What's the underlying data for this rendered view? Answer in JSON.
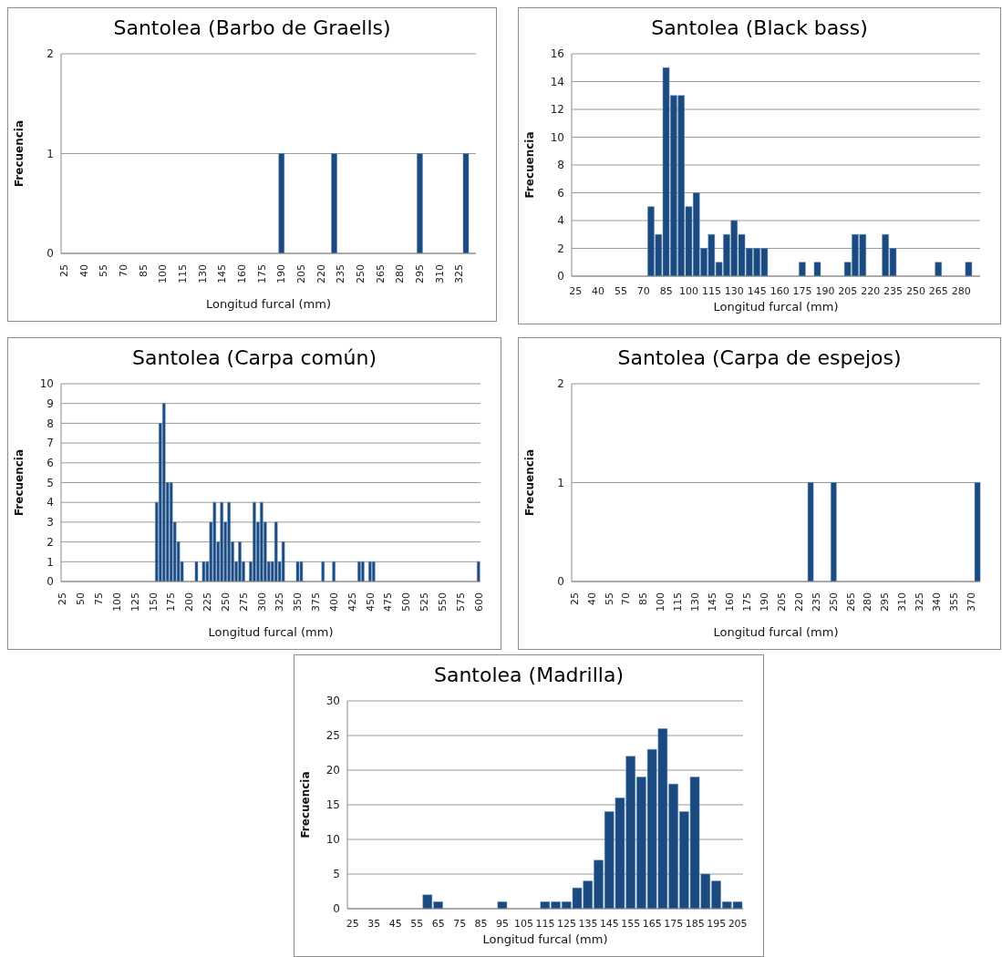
{
  "chart_data": [
    {
      "type": "bar",
      "title": "Santolea (Barbo de Graells)",
      "xlabel": "Longitud furcal (mm)",
      "ylabel": "Frecuencia",
      "color": "#1b4a80",
      "ylim": [
        0,
        2
      ],
      "yticks": [
        0,
        1,
        2
      ],
      "grid": "y",
      "categories": [
        "25",
        null,
        null,
        "40",
        null,
        null,
        "55",
        null,
        null,
        "70",
        null,
        null,
        "85",
        null,
        null,
        "100",
        null,
        null,
        "115",
        null,
        null,
        "130",
        null,
        null,
        "145",
        null,
        null,
        "160",
        null,
        null,
        "175",
        null,
        null,
        "190",
        null,
        null,
        "205",
        null,
        null,
        "220",
        null,
        null,
        "235",
        null,
        null,
        "250",
        null,
        null,
        "265",
        null,
        null,
        "280",
        null,
        null,
        "295",
        null,
        null,
        "310",
        null,
        null,
        "325",
        null,
        null
      ],
      "values": [
        0,
        0,
        0,
        0,
        0,
        0,
        0,
        0,
        0,
        0,
        0,
        0,
        0,
        0,
        0,
        0,
        0,
        0,
        0,
        0,
        0,
        0,
        0,
        0,
        0,
        0,
        0,
        0,
        0,
        0,
        0,
        0,
        0,
        1,
        0,
        0,
        0,
        0,
        0,
        0,
        0,
        1,
        0,
        0,
        0,
        0,
        0,
        0,
        0,
        0,
        0,
        0,
        0,
        0,
        1,
        0,
        0,
        0,
        0,
        0,
        0,
        1,
        0
      ]
    },
    {
      "type": "bar",
      "title": "Santolea (Black bass)",
      "xlabel": "Longitud furcal (mm)",
      "ylabel": "Frecuencia",
      "color": "#1b4a80",
      "ylim": [
        0,
        16
      ],
      "yticks": [
        0,
        2,
        4,
        6,
        8,
        10,
        12,
        14,
        16
      ],
      "grid": "y",
      "categories": [
        "25",
        null,
        null,
        "40",
        null,
        null,
        "55",
        null,
        null,
        "70",
        null,
        null,
        "85",
        null,
        null,
        "100",
        null,
        null,
        "115",
        null,
        null,
        "130",
        null,
        null,
        "145",
        null,
        null,
        "160",
        null,
        null,
        "175",
        null,
        null,
        "190",
        null,
        null,
        "205",
        null,
        null,
        "220",
        null,
        null,
        "235",
        null,
        null,
        "250",
        null,
        null,
        "265",
        null,
        null,
        "280",
        null,
        null
      ],
      "values": [
        0,
        0,
        0,
        0,
        0,
        0,
        0,
        0,
        0,
        0,
        5,
        3,
        15,
        13,
        13,
        5,
        6,
        2,
        3,
        1,
        3,
        4,
        3,
        2,
        2,
        2,
        0,
        0,
        0,
        0,
        1,
        0,
        1,
        0,
        0,
        0,
        1,
        3,
        3,
        0,
        0,
        3,
        2,
        0,
        0,
        0,
        0,
        0,
        1,
        0,
        0,
        0,
        1,
        0
      ]
    },
    {
      "type": "bar",
      "title": "Santolea (Carpa común)",
      "xlabel": "Longitud furcal (mm)",
      "ylabel": "Frecuencia",
      "color": "#1b4a80",
      "ylim": [
        0,
        10
      ],
      "yticks": [
        0,
        1,
        2,
        3,
        4,
        5,
        6,
        7,
        8,
        9,
        10
      ],
      "grid": "y",
      "categories": [
        "25",
        null,
        null,
        null,
        null,
        "50",
        null,
        null,
        null,
        null,
        "75",
        null,
        null,
        null,
        null,
        "100",
        null,
        null,
        null,
        null,
        "125",
        null,
        null,
        null,
        null,
        "150",
        null,
        null,
        null,
        null,
        "175",
        null,
        null,
        null,
        null,
        "200",
        null,
        null,
        null,
        null,
        "225",
        null,
        null,
        null,
        null,
        "250",
        null,
        null,
        null,
        null,
        "275",
        null,
        null,
        null,
        null,
        "300",
        null,
        null,
        null,
        null,
        "325",
        null,
        null,
        null,
        null,
        "350",
        null,
        null,
        null,
        null,
        "375",
        null,
        null,
        null,
        null,
        "400",
        null,
        null,
        null,
        null,
        "425",
        null,
        null,
        null,
        null,
        "450",
        null,
        null,
        null,
        null,
        "475",
        null,
        null,
        null,
        null,
        "500",
        null,
        null,
        null,
        null,
        "525",
        null,
        null,
        null,
        null,
        "550",
        null,
        null,
        null,
        null,
        "575",
        null,
        null,
        null,
        null,
        "600"
      ],
      "values": [
        0,
        0,
        0,
        0,
        0,
        0,
        0,
        0,
        0,
        0,
        0,
        0,
        0,
        0,
        0,
        0,
        0,
        0,
        0,
        0,
        0,
        0,
        0,
        0,
        0,
        0,
        4,
        8,
        9,
        5,
        5,
        3,
        2,
        1,
        0,
        0,
        0,
        1,
        0,
        1,
        1,
        3,
        4,
        2,
        4,
        3,
        4,
        2,
        1,
        2,
        1,
        0,
        1,
        4,
        3,
        4,
        3,
        1,
        1,
        3,
        1,
        2,
        0,
        0,
        0,
        1,
        1,
        0,
        0,
        0,
        0,
        0,
        1,
        0,
        0,
        1,
        0,
        0,
        0,
        0,
        0,
        0,
        1,
        1,
        0,
        1,
        1,
        0,
        0,
        0,
        0,
        0,
        0,
        0,
        0,
        0,
        0,
        0,
        0,
        0,
        0,
        0,
        0,
        0,
        0,
        0,
        0,
        0,
        0,
        0,
        0,
        0,
        0,
        0,
        0,
        1
      ]
    },
    {
      "type": "bar",
      "title": "Santolea (Carpa de espejos)",
      "xlabel": "Longitud furcal (mm)",
      "ylabel": "Frecuencia",
      "color": "#1b4a80",
      "ylim": [
        0,
        2
      ],
      "yticks": [
        0,
        1,
        2
      ],
      "grid": "y",
      "categories": [
        "25",
        null,
        null,
        "40",
        null,
        null,
        "55",
        null,
        null,
        "70",
        null,
        null,
        "85",
        null,
        null,
        "100",
        null,
        null,
        "115",
        null,
        null,
        "130",
        null,
        null,
        "145",
        null,
        null,
        "160",
        null,
        null,
        "175",
        null,
        null,
        "190",
        null,
        null,
        "205",
        null,
        null,
        "220",
        null,
        null,
        "235",
        null,
        null,
        "250",
        null,
        null,
        "265",
        null,
        null,
        "280",
        null,
        null,
        "295",
        null,
        null,
        "310",
        null,
        null,
        "325",
        null,
        null,
        "340",
        null,
        null,
        "355",
        null,
        null,
        "370",
        null
      ],
      "values": [
        0,
        0,
        0,
        0,
        0,
        0,
        0,
        0,
        0,
        0,
        0,
        0,
        0,
        0,
        0,
        0,
        0,
        0,
        0,
        0,
        0,
        0,
        0,
        0,
        0,
        0,
        0,
        0,
        0,
        0,
        0,
        0,
        0,
        0,
        0,
        0,
        0,
        0,
        0,
        0,
        0,
        1,
        0,
        0,
        0,
        1,
        0,
        0,
        0,
        0,
        0,
        0,
        0,
        0,
        0,
        0,
        0,
        0,
        0,
        0,
        0,
        0,
        0,
        0,
        0,
        0,
        0,
        0,
        0,
        0,
        1
      ]
    },
    {
      "type": "bar",
      "title": "Santolea (Madrilla)",
      "xlabel": "Longitud furcal (mm)",
      "ylabel": "Frecuencia",
      "color": "#1b4a80",
      "ylim": [
        0,
        30
      ],
      "yticks": [
        0,
        5,
        10,
        15,
        20,
        25,
        30
      ],
      "grid": "y",
      "categories": [
        "25",
        null,
        "35",
        null,
        "45",
        null,
        "55",
        null,
        "65",
        null,
        "75",
        null,
        "85",
        null,
        "95",
        null,
        "105",
        null,
        "115",
        null,
        "125",
        null,
        "135",
        null,
        "145",
        null,
        "155",
        null,
        "165",
        null,
        "175",
        null,
        "185",
        null,
        "195",
        null,
        "205"
      ],
      "values": [
        0,
        0,
        0,
        0,
        0,
        0,
        0,
        2,
        1,
        0,
        0,
        0,
        0,
        0,
        1,
        0,
        0,
        0,
        1,
        1,
        1,
        3,
        4,
        7,
        14,
        16,
        22,
        19,
        23,
        26,
        18,
        14,
        19,
        5,
        4,
        1,
        1
      ]
    }
  ]
}
